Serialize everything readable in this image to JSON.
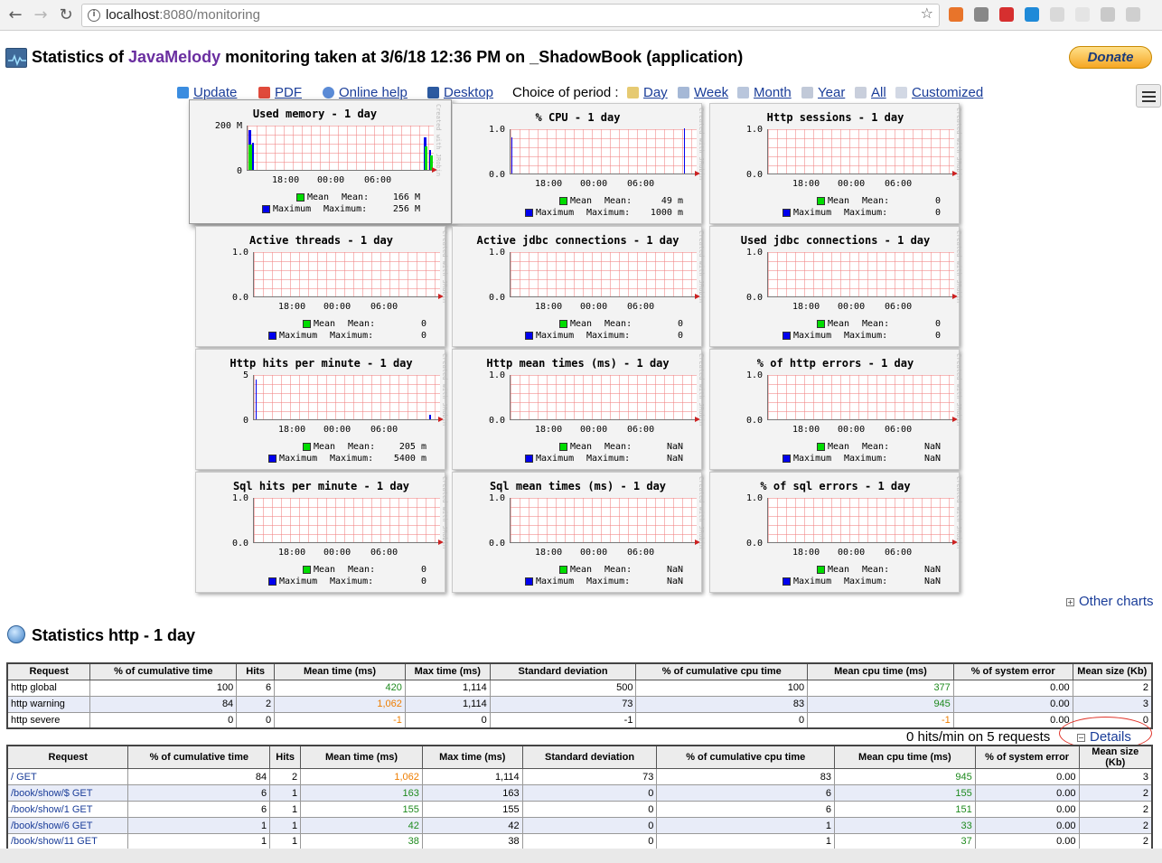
{
  "browser": {
    "url_host": "localhost",
    "url_path": ":8080/monitoring"
  },
  "header": {
    "title_prefix": "Statistics of ",
    "title_brand": "JavaMelody",
    "title_suffix": " monitoring taken at 3/6/18 12:36 PM on _ShadowBook (application)",
    "donate_label": "Donate"
  },
  "toolbar": {
    "update": "Update",
    "pdf": "PDF",
    "online_help": "Online help",
    "desktop": "Desktop",
    "period_label": "Choice of period :",
    "day": "Day",
    "week": "Week",
    "month": "Month",
    "year": "Year",
    "all": "All",
    "customized": "Customized"
  },
  "charts": {
    "x_ticks": [
      "18:00",
      "00:00",
      "06:00"
    ],
    "mean_label": "Mean",
    "maximum_label": "Maximum",
    "mean_key": "Mean:",
    "maximum_key": "Maximum:",
    "watermark": "Created with JRobin",
    "items": [
      {
        "title": "Used memory - 1 day",
        "ymax": "200 M",
        "ymin": "0",
        "mean": "166 M",
        "max": "256 M"
      },
      {
        "title": "% CPU - 1 day",
        "ymax": "1.0",
        "ymin": "0.0",
        "mean": "49 m",
        "max": "1000 m"
      },
      {
        "title": "Http sessions - 1 day",
        "ymax": "1.0",
        "ymin": "0.0",
        "mean": "0",
        "max": "0"
      },
      {
        "title": "Active threads - 1 day",
        "ymax": "1.0",
        "ymin": "0.0",
        "mean": "0",
        "max": "0"
      },
      {
        "title": "Active jdbc connections - 1 day",
        "ymax": "1.0",
        "ymin": "0.0",
        "mean": "0",
        "max": "0"
      },
      {
        "title": "Used jdbc connections - 1 day",
        "ymax": "1.0",
        "ymin": "0.0",
        "mean": "0",
        "max": "0"
      },
      {
        "title": "Http hits per minute - 1 day",
        "ymax": "5",
        "ymin": "0",
        "mean": "205 m",
        "max": "5400 m"
      },
      {
        "title": "Http mean times (ms) - 1 day",
        "ymax": "1.0",
        "ymin": "0.0",
        "mean": "NaN",
        "max": "NaN"
      },
      {
        "title": "% of http errors - 1 day",
        "ymax": "1.0",
        "ymin": "0.0",
        "mean": "NaN",
        "max": "NaN"
      },
      {
        "title": "Sql hits per minute - 1 day",
        "ymax": "1.0",
        "ymin": "0.0",
        "mean": "0",
        "max": "0"
      },
      {
        "title": "Sql mean times (ms) - 1 day",
        "ymax": "1.0",
        "ymin": "0.0",
        "mean": "NaN",
        "max": "NaN"
      },
      {
        "title": "% of sql errors - 1 day",
        "ymax": "1.0",
        "ymin": "0.0",
        "mean": "NaN",
        "max": "NaN"
      }
    ]
  },
  "other_charts": "Other charts",
  "section": {
    "title": "Statistics http - 1 day"
  },
  "table1": {
    "headers": [
      "Request",
      "% of cumulative time",
      "Hits",
      "Mean time (ms)",
      "Max time (ms)",
      "Standard deviation",
      "% of cumulative cpu time",
      "Mean cpu time (ms)",
      "% of system error",
      "Mean size (Kb)"
    ],
    "rows": [
      [
        "http global",
        "100",
        "6",
        "420",
        "1,114",
        "500",
        "100",
        "377",
        "0.00",
        "2"
      ],
      [
        "http warning",
        "84",
        "2",
        "1,062",
        "1,114",
        "73",
        "83",
        "945",
        "0.00",
        "3"
      ],
      [
        "http severe",
        "0",
        "0",
        "-1",
        "0",
        "-1",
        "0",
        "-1",
        "0.00",
        "0"
      ]
    ]
  },
  "summary": {
    "hits_text": "0 hits/min on 5 requests",
    "details_label": "Details"
  },
  "table2": {
    "headers": [
      "Request",
      "% of cumulative time",
      "Hits",
      "Mean time (ms)",
      "Max time (ms)",
      "Standard deviation",
      "% of cumulative cpu time",
      "Mean cpu time (ms)",
      "% of system error",
      "Mean size (Kb)"
    ],
    "rows": [
      [
        "/ GET",
        "84",
        "2",
        "1,062",
        "1,114",
        "73",
        "83",
        "945",
        "0.00",
        "3"
      ],
      [
        "/book/show/$ GET",
        "6",
        "1",
        "163",
        "163",
        "0",
        "6",
        "155",
        "0.00",
        "2"
      ],
      [
        "/book/show/1 GET",
        "6",
        "1",
        "155",
        "155",
        "0",
        "6",
        "151",
        "0.00",
        "2"
      ],
      [
        "/book/show/6 GET",
        "1",
        "1",
        "42",
        "42",
        "0",
        "1",
        "33",
        "0.00",
        "2"
      ],
      [
        "/book/show/11 GET",
        "1",
        "1",
        "38",
        "38",
        "0",
        "1",
        "37",
        "0.00",
        "2"
      ]
    ]
  }
}
